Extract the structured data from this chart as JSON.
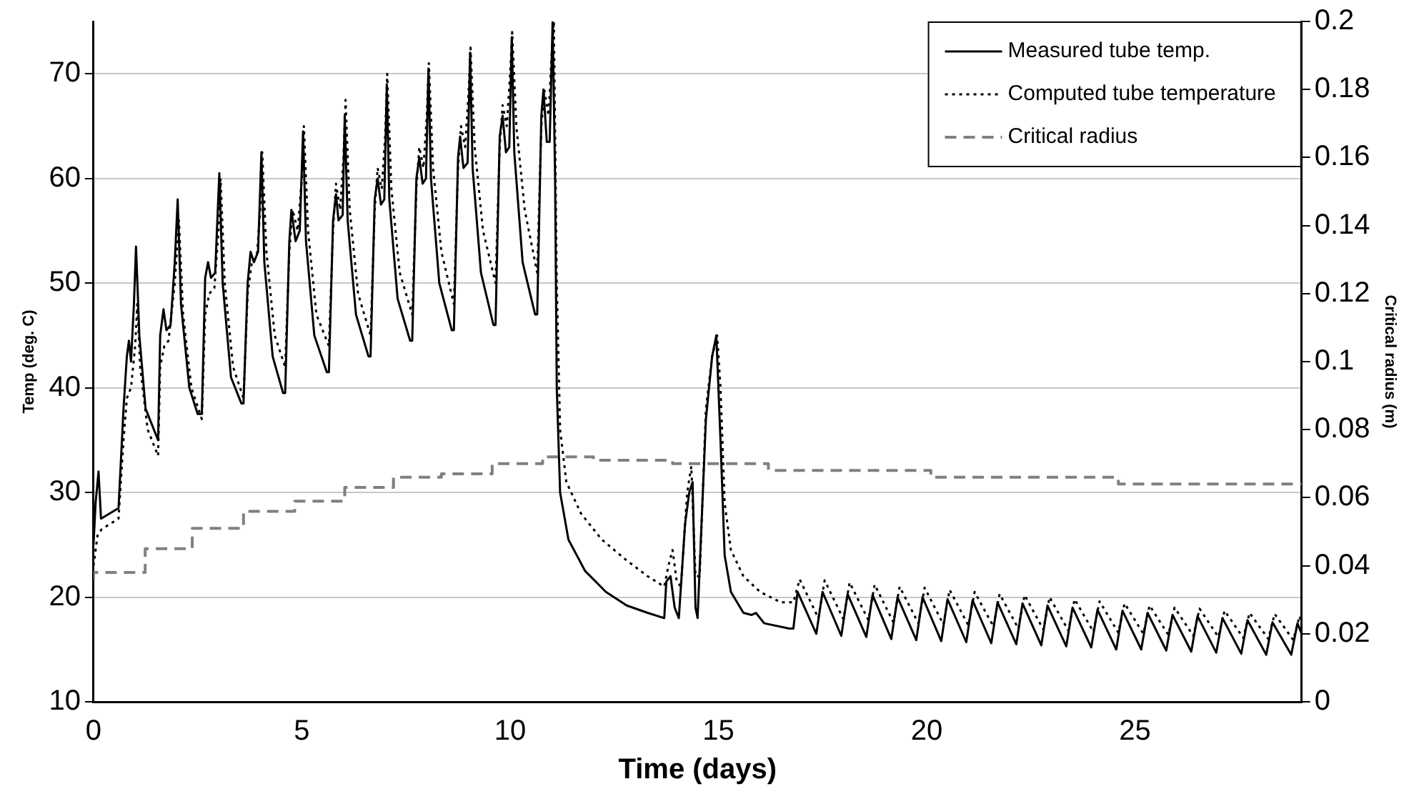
{
  "chart_data": {
    "type": "line",
    "xlabel": "Time (days)",
    "ylabel": "Temp (deg. C)",
    "y2label": "Critical radius (m)",
    "xlim": [
      0,
      29
    ],
    "xticks": [
      0,
      5,
      10,
      15,
      20,
      25
    ],
    "ylim": [
      10,
      75
    ],
    "yticks": [
      10,
      20,
      30,
      40,
      50,
      60,
      70
    ],
    "y2lim": [
      0,
      0.2
    ],
    "y2ticks": [
      0,
      0.02,
      0.04,
      0.06,
      0.08,
      0.1,
      0.12,
      0.14,
      0.16,
      0.18,
      0.2
    ],
    "grid": "y",
    "legend": "top right",
    "marker": "none",
    "series": [
      {
        "name": "Measured tube temp.",
        "color": "#000000",
        "line_style": "solid",
        "x": [
          0,
          0.05,
          0.12,
          0.18,
          0.6,
          0.72,
          0.8,
          0.85,
          0.9,
          0.97,
          1.02,
          1.1,
          1.25,
          1.5,
          1.55,
          1.6,
          1.68,
          1.75,
          1.85,
          1.95,
          2.02,
          2.1,
          2.3,
          2.5,
          2.6,
          2.68,
          2.75,
          2.82,
          2.92,
          3.02,
          3.1,
          3.3,
          3.55,
          3.6,
          3.7,
          3.77,
          3.85,
          3.95,
          4.03,
          4.1,
          4.3,
          4.55,
          4.6,
          4.7,
          4.75,
          4.85,
          4.95,
          5.03,
          5.1,
          5.3,
          5.6,
          5.65,
          5.75,
          5.82,
          5.88,
          5.98,
          6.03,
          6.1,
          6.3,
          6.6,
          6.65,
          6.75,
          6.82,
          6.9,
          6.98,
          7.04,
          7.1,
          7.3,
          7.6,
          7.65,
          7.75,
          7.82,
          7.9,
          7.98,
          8.04,
          8.1,
          8.3,
          8.6,
          8.65,
          8.75,
          8.8,
          8.88,
          8.98,
          9.04,
          9.1,
          9.3,
          9.6,
          9.65,
          9.75,
          9.82,
          9.9,
          9.98,
          10.04,
          10.1,
          10.3,
          10.6,
          10.65,
          10.75,
          10.8,
          10.88,
          10.95,
          11.02,
          11.08,
          11.12,
          11.2,
          11.4,
          11.8,
          12.3,
          12.8,
          13.3,
          13.7,
          13.75,
          13.85,
          13.95,
          14.05,
          14.2,
          14.3,
          14.38,
          14.45,
          14.5,
          14.7,
          14.85,
          14.95,
          15.05,
          15.15,
          15.3,
          15.6,
          15.8,
          15.9,
          16.1,
          16.7,
          16.8,
          16.9,
          17.35,
          17.5,
          17.95,
          18.1,
          18.55,
          18.7,
          19.15,
          19.3,
          19.75,
          19.9,
          20.35,
          20.5,
          20.95,
          21.1,
          21.55,
          21.7,
          22.15,
          22.3,
          22.75,
          22.9,
          23.35,
          23.5,
          23.95,
          24.1,
          24.55,
          24.7,
          25.15,
          25.3,
          25.75,
          25.9,
          26.35,
          26.5,
          26.95,
          27.1,
          27.55,
          27.7,
          28.15,
          28.3,
          28.75,
          28.9,
          29
        ],
        "values": [
          25,
          29,
          32,
          27.5,
          28.5,
          38,
          43,
          44.5,
          42.5,
          48,
          53.5,
          45,
          38,
          35.5,
          35,
          45,
          47.5,
          45.5,
          46,
          52,
          58,
          48,
          40,
          37.5,
          37.5,
          50.5,
          52,
          50.5,
          51,
          60.5,
          50,
          41,
          38.5,
          38.5,
          50,
          53,
          52,
          53,
          62.5,
          52,
          43,
          39.5,
          39.5,
          54,
          57,
          54,
          55,
          64.5,
          54,
          45,
          41.5,
          41.5,
          56,
          58.5,
          56,
          56.5,
          66,
          56,
          47,
          43,
          43,
          58,
          60,
          57.5,
          58,
          69,
          58,
          48.5,
          44.5,
          44.5,
          60,
          62,
          59.5,
          60,
          70.5,
          60,
          50,
          45.5,
          45.5,
          62,
          64,
          61,
          61.5,
          72,
          61,
          51,
          46,
          46,
          64,
          66,
          62.5,
          63,
          73.5,
          62.5,
          52,
          47,
          47,
          66,
          68.5,
          63.5,
          63.5,
          75,
          60,
          40,
          30,
          25.5,
          22.5,
          20.5,
          19.2,
          18.5,
          18,
          21.5,
          22,
          19,
          18,
          27,
          30,
          31,
          19,
          18,
          37,
          43,
          45,
          35,
          24,
          20.5,
          18.5,
          18.3,
          18.5,
          17.5,
          17,
          17,
          20.5,
          16.5,
          20.5,
          16.3,
          20.3,
          16.2,
          20.2,
          16,
          20,
          15.9,
          20,
          15.8,
          19.8,
          15.7,
          19.7,
          15.6,
          19.5,
          15.5,
          19.4,
          15.4,
          19.2,
          15.3,
          19,
          15.2,
          18.8,
          15,
          18.7,
          15,
          18.5,
          14.9,
          18.3,
          14.8,
          18.2,
          14.7,
          18,
          14.6,
          17.8,
          14.5,
          17.6,
          14.5,
          17.5,
          16.5
        ]
      },
      {
        "name": "Computed tube temperature",
        "color": "#000000",
        "line_style": "dotted",
        "x": [
          0,
          0.1,
          0.2,
          0.6,
          0.72,
          0.8,
          0.9,
          1.0,
          1.05,
          1.12,
          1.3,
          1.55,
          1.6,
          1.7,
          1.8,
          1.95,
          2.05,
          2.15,
          2.35,
          2.6,
          2.68,
          2.78,
          2.9,
          3.0,
          3.05,
          3.15,
          3.35,
          3.6,
          3.7,
          3.8,
          3.92,
          4.0,
          4.05,
          4.15,
          4.35,
          4.6,
          4.7,
          4.78,
          4.9,
          5.0,
          5.05,
          5.15,
          5.35,
          5.65,
          5.75,
          5.82,
          5.92,
          6.0,
          6.05,
          6.15,
          6.35,
          6.65,
          6.75,
          6.82,
          6.92,
          7.0,
          7.05,
          7.15,
          7.35,
          7.65,
          7.75,
          7.82,
          7.92,
          8.0,
          8.05,
          8.15,
          8.35,
          8.65,
          8.75,
          8.82,
          8.92,
          9.0,
          9.05,
          9.15,
          9.35,
          9.65,
          9.75,
          9.82,
          9.92,
          10.0,
          10.05,
          10.15,
          10.35,
          10.65,
          10.75,
          10.82,
          10.92,
          11.0,
          11.05,
          11.12,
          11.2,
          11.35,
          11.7,
          12.2,
          12.8,
          13.3,
          13.7,
          13.8,
          13.9,
          14.0,
          14.1,
          14.25,
          14.35,
          14.45,
          14.55,
          14.7,
          14.85,
          14.97,
          15.05,
          15.15,
          15.3,
          15.6,
          16.0,
          16.5,
          16.8,
          16.95,
          17.4,
          17.55,
          18.0,
          18.15,
          18.6,
          18.75,
          19.2,
          19.35,
          19.8,
          19.95,
          20.4,
          20.55,
          21.0,
          21.15,
          21.6,
          21.75,
          22.2,
          22.35,
          22.8,
          22.95,
          23.4,
          23.55,
          24.0,
          24.15,
          24.6,
          24.75,
          25.2,
          25.35,
          25.8,
          25.95,
          26.4,
          26.55,
          27.0,
          27.15,
          27.6,
          27.75,
          28.2,
          28.35,
          28.8,
          28.95,
          29
        ],
        "values": [
          23,
          26,
          26.5,
          27.5,
          35,
          39,
          40,
          44,
          48,
          42,
          36,
          33.5,
          42,
          44,
          44.5,
          50,
          56,
          47,
          40,
          37,
          47,
          49,
          49.5,
          55,
          60,
          50,
          42,
          39,
          49,
          52,
          52.5,
          57,
          62.5,
          53,
          45,
          42,
          53,
          57,
          55,
          60,
          65,
          55,
          47,
          44,
          55,
          59.5,
          57,
          62,
          67.5,
          57,
          49,
          45,
          57,
          61,
          59,
          64,
          70,
          59,
          51,
          47,
          59,
          63,
          61,
          66,
          71,
          61,
          53,
          48,
          61,
          65,
          63,
          68,
          72.5,
          63,
          55,
          50,
          63,
          67,
          65,
          70,
          74,
          65,
          57,
          51,
          65,
          68.5,
          66,
          72,
          75,
          50,
          36,
          31,
          28,
          25.5,
          23.5,
          22,
          21,
          23,
          24.5,
          21.5,
          21,
          30,
          32.5,
          22,
          22,
          38,
          43,
          45,
          40,
          29,
          24.5,
          22,
          20.5,
          19.5,
          19.5,
          21.7,
          18,
          21.6,
          17.9,
          21.4,
          17.8,
          21.2,
          17.6,
          21,
          17.5,
          20.9,
          17.4,
          20.7,
          17.3,
          20.5,
          17.2,
          20.3,
          17,
          20.2,
          16.9,
          20,
          16.8,
          19.8,
          16.7,
          19.6,
          16.6,
          19.4,
          16.5,
          19.2,
          16.4,
          19,
          16.3,
          18.9,
          16.2,
          18.7,
          16.1,
          18.5,
          16,
          18.4,
          15.9,
          18.2,
          17.5
        ]
      },
      {
        "name": "Critical radius",
        "color": "#808080",
        "line_style": "dashed",
        "type": "step",
        "axis": "y2",
        "x": [
          0,
          1.24,
          2.37,
          3.6,
          4.83,
          6.03,
          7.2,
          8.35,
          9.57,
          10.78,
          12,
          13.9,
          16.2,
          20.1,
          24.6,
          26.9,
          29
        ],
        "values": [
          0.036,
          0.038,
          0.045,
          0.051,
          0.056,
          0.059,
          0.063,
          0.066,
          0.067,
          0.07,
          0.072,
          0.071,
          0.07,
          0.068,
          0.066,
          0.064,
          0.064
        ]
      }
    ]
  }
}
